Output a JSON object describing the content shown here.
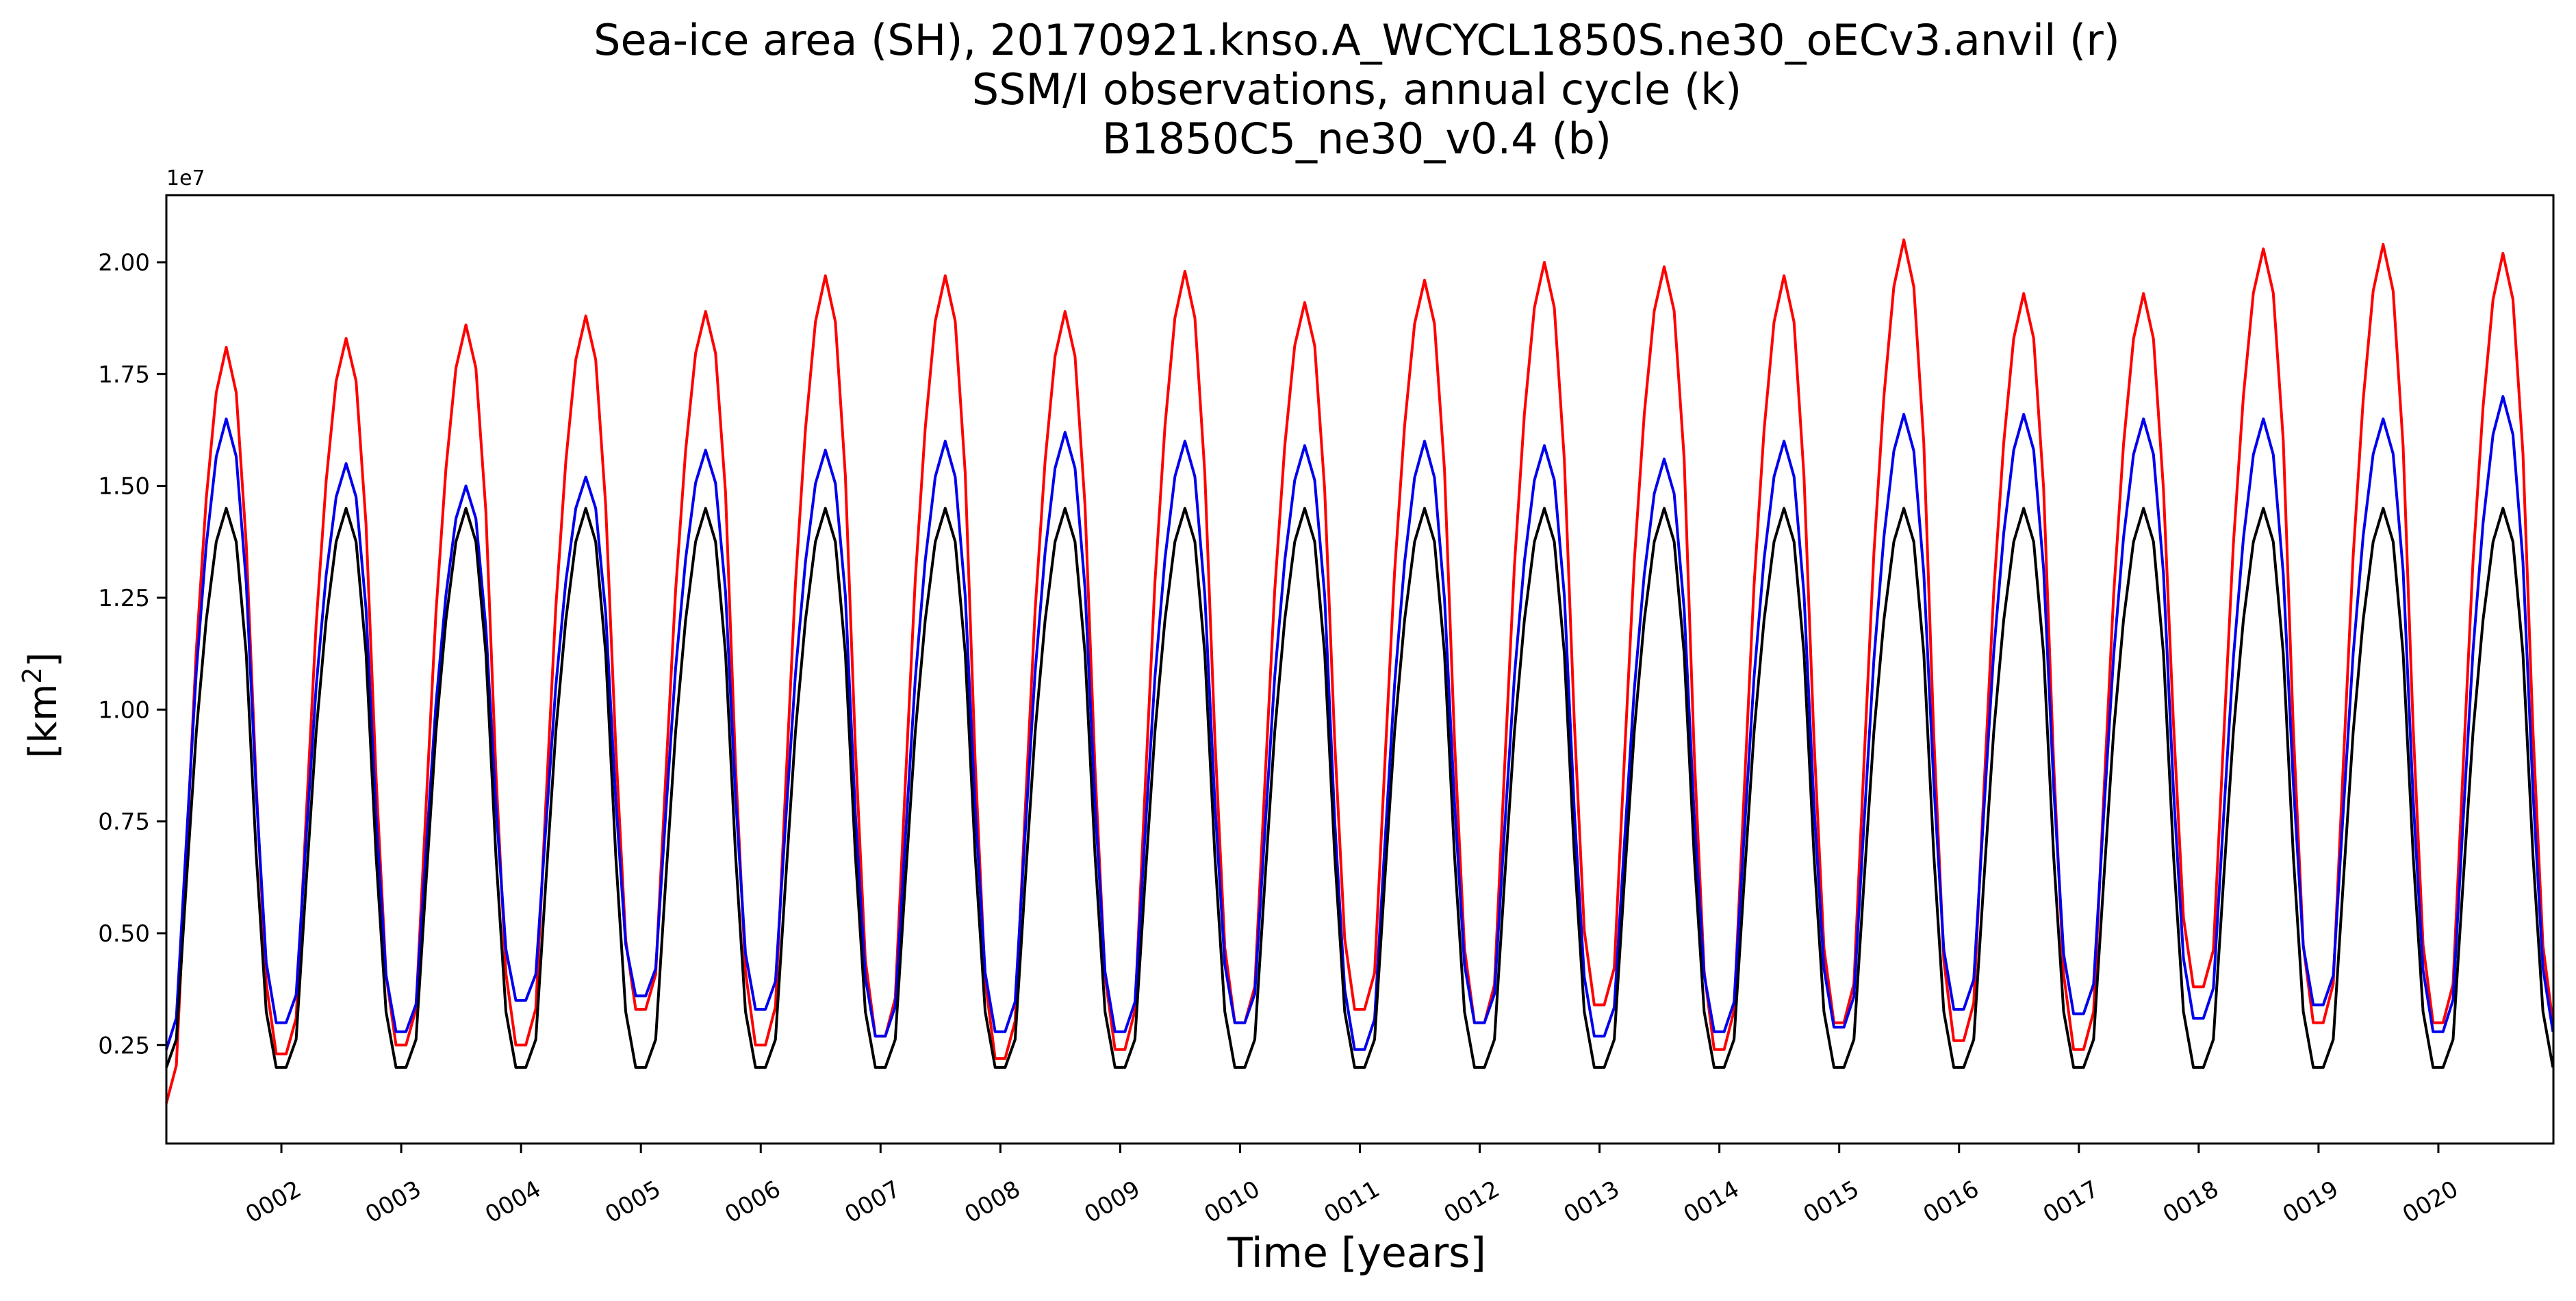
{
  "chart_data": {
    "type": "line",
    "title_lines": [
      "Sea-ice area (SH), 20170921.knso.A_WCYCL1850S.ne30_oECv3.anvil (r)",
      "SSM/I observations, annual cycle (k)",
      "B1850C5_ne30_v0.4 (b)"
    ],
    "xlabel": "Time [years]",
    "ylabel_base": "[km",
    "ylabel_sup": "2",
    "ylabel_close": "]",
    "y_offset_label": "1e7",
    "x_ticks": [
      2,
      3,
      4,
      5,
      6,
      7,
      8,
      9,
      10,
      11,
      12,
      13,
      14,
      15,
      16,
      17,
      18,
      19,
      20
    ],
    "x_tick_labels": [
      "0002",
      "0003",
      "0004",
      "0005",
      "0006",
      "0007",
      "0008",
      "0009",
      "0010",
      "0011",
      "0012",
      "0013",
      "0014",
      "0015",
      "0016",
      "0017",
      "0018",
      "0019",
      "0020"
    ],
    "y_ticks": [
      0.25,
      0.5,
      0.75,
      1.0,
      1.25,
      1.5,
      1.75,
      2.0
    ],
    "y_tick_labels": [
      "0.25",
      "0.50",
      "0.75",
      "1.00",
      "1.25",
      "1.50",
      "1.75",
      "2.00"
    ],
    "xlim": [
      1.04,
      20.96
    ],
    "ylim": [
      0.03,
      2.15
    ],
    "y_scale_note": "values in units of 1e7 km^2",
    "x_start": 1.04,
    "x_step": 0.08333,
    "series": [
      {
        "color": "#ff0000",
        "peaks": [
          1.81,
          1.83,
          1.86,
          1.88,
          1.89,
          1.97,
          1.97,
          1.89,
          1.98,
          1.91,
          1.96,
          2.0,
          1.99,
          1.97,
          2.05,
          1.93,
          1.93,
          2.03,
          2.04,
          2.02
        ],
        "troughs": [
          0.12,
          0.23,
          0.25,
          0.25,
          0.33,
          0.25,
          0.27,
          0.22,
          0.24,
          0.3,
          0.33,
          0.3,
          0.34,
          0.24,
          0.3,
          0.26,
          0.24,
          0.38,
          0.3,
          0.3
        ]
      },
      {
        "color": "#0000ee",
        "peaks": [
          1.65,
          1.55,
          1.5,
          1.52,
          1.58,
          1.58,
          1.6,
          1.62,
          1.6,
          1.59,
          1.6,
          1.59,
          1.56,
          1.6,
          1.66,
          1.66,
          1.65,
          1.65,
          1.65,
          1.7
        ],
        "troughs": [
          0.24,
          0.3,
          0.28,
          0.35,
          0.36,
          0.33,
          0.27,
          0.28,
          0.28,
          0.3,
          0.24,
          0.3,
          0.27,
          0.28,
          0.29,
          0.33,
          0.32,
          0.31,
          0.34,
          0.28
        ]
      },
      {
        "color": "#000000",
        "peaks": [
          1.45,
          1.45,
          1.45,
          1.45,
          1.45,
          1.45,
          1.45,
          1.45,
          1.45,
          1.45,
          1.45,
          1.45,
          1.45,
          1.45,
          1.45,
          1.45,
          1.45,
          1.45,
          1.45,
          1.45
        ],
        "troughs": [
          0.2,
          0.2,
          0.2,
          0.2,
          0.2,
          0.2,
          0.2,
          0.2,
          0.2,
          0.2,
          0.2,
          0.2,
          0.2,
          0.2,
          0.2,
          0.2,
          0.2,
          0.2,
          0.2,
          0.2
        ]
      }
    ],
    "grid": false,
    "legend": "none"
  }
}
